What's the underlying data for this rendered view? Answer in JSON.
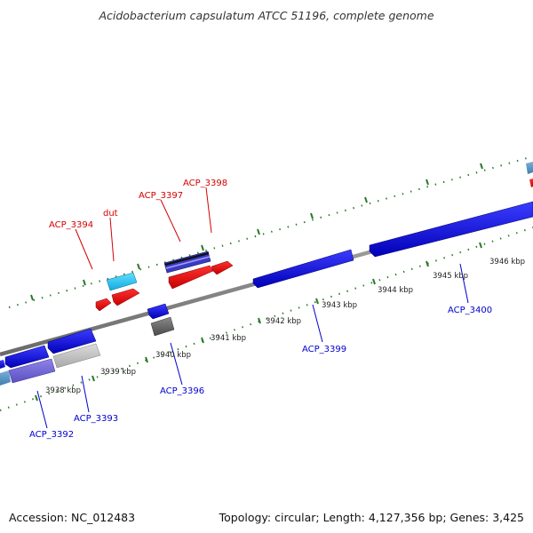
{
  "title": "Acidobacterium capsulatum ATCC 51196, complete genome",
  "footer": {
    "accession": "Accession: NC_012483",
    "summary": "Topology: circular; Length: 4,127,356 bp; Genes: 3,425"
  },
  "colors": {
    "forward_label": "#d40000",
    "reverse_label": "#0000cc",
    "tick": "#2a7a2a",
    "backbone": "#8a8a8a"
  },
  "kbp_labels": [
    "3938 kbp",
    "3939 kbp",
    "3940 kbp",
    "3941 kbp",
    "3942 kbp",
    "3943 kbp",
    "3944 kbp",
    "3945 kbp",
    "3946 kbp"
  ],
  "gene_labels": {
    "acp_3394": "ACP_3394",
    "dut": "dut",
    "acp_3397": "ACP_3397",
    "acp_3398": "ACP_3398",
    "acp_3392": "ACP_3392",
    "acp_3393": "ACP_3393",
    "acp_3396": "ACP_3396",
    "acp_3399": "ACP_3399",
    "acp_3400": "ACP_3400"
  }
}
